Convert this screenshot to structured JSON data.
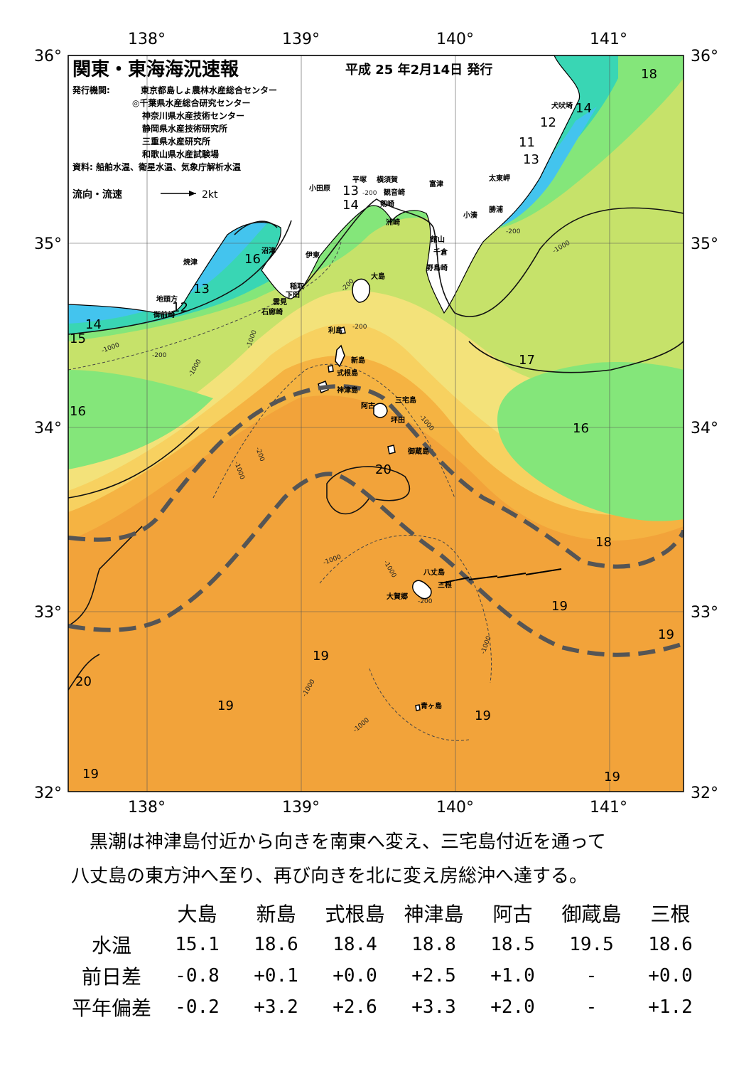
{
  "header": {
    "title": "関東・東海海況速報",
    "date": "平成 25 年2月14日 発行",
    "issuer_label": "発行機関:",
    "issuers": [
      "東京都島しょ農林水産総合センター",
      "◎千葉県水産総合研究センター",
      "神奈川県水産技術センター",
      "静岡県水産技術研究所",
      "三重県水産研究所",
      "和歌山県水産試験場"
    ],
    "source": "資料: 船舶水温、衛星水温、気象庁解析水温",
    "legend_label": "流向・流速",
    "legend_scale": "2kt"
  },
  "axes": {
    "lon_labels": [
      "138°",
      "139°",
      "140°",
      "141°"
    ],
    "lat_labels": [
      "36°",
      "35°",
      "34°",
      "33°",
      "32°"
    ]
  },
  "place_names": [
    "小田原",
    "平塚",
    "横須賀",
    "観音崎",
    "富津",
    "剱崎",
    "洲崎",
    "館山",
    "千倉",
    "野島崎",
    "犬吠埼",
    "太東岬",
    "勝浦",
    "小湊",
    "沼津",
    "焼津",
    "伊東",
    "稲取",
    "下田",
    "雲見",
    "石廊崎",
    "地頭方",
    "御前崎",
    "大島",
    "利島",
    "新島",
    "式根島",
    "神津島",
    "三宅島",
    "阿古",
    "坪田",
    "御蔵島",
    "八丈島",
    "三根",
    "大賀郷",
    "青ヶ島"
  ],
  "isotherm_labels": [
    "18",
    "14",
    "12",
    "11",
    "13",
    "13",
    "14",
    "16",
    "13",
    "12",
    "14",
    "15",
    "17",
    "16",
    "16",
    "20",
    "18",
    "19",
    "19",
    "19",
    "20",
    "19",
    "19",
    "19",
    "19"
  ],
  "depth_labels": [
    "-200",
    "-1000"
  ],
  "summary": {
    "line1": "黒潮は神津島付近から向きを南東へ変え、三宅島付近を通って",
    "line2": "八丈島の東方沖へ至り、再び向きを北に変え房総沖へ達する。"
  },
  "table": {
    "columns": [
      "大島",
      "新島",
      "式根島",
      "神津島",
      "阿古",
      "御蔵島",
      "三根"
    ],
    "rows": [
      {
        "label": "水温",
        "values": [
          "15.1",
          "18.6",
          "18.4",
          "18.8",
          "18.5",
          "19.5",
          "18.6"
        ]
      },
      {
        "label": "前日差",
        "values": [
          "-0.8",
          "+0.1",
          "+0.0",
          "+2.5",
          "+1.0",
          "-",
          "+0.0"
        ]
      },
      {
        "label": "平年偏差",
        "values": [
          "-0.2",
          "+3.2",
          "+2.6",
          "+3.3",
          "+2.0",
          "-",
          "+1.2"
        ]
      }
    ]
  },
  "colors": {
    "warm": "#f2a33a",
    "orange": "#f5b342",
    "yellow": "#f7d160",
    "pale_yellow": "#f3e27a",
    "yellow_green": "#c6e26a",
    "green": "#84e67a",
    "teal": "#39d6b4",
    "cyan": "#43c4ee",
    "land": "#ffffff",
    "kuroshio_axis": "#555555"
  }
}
